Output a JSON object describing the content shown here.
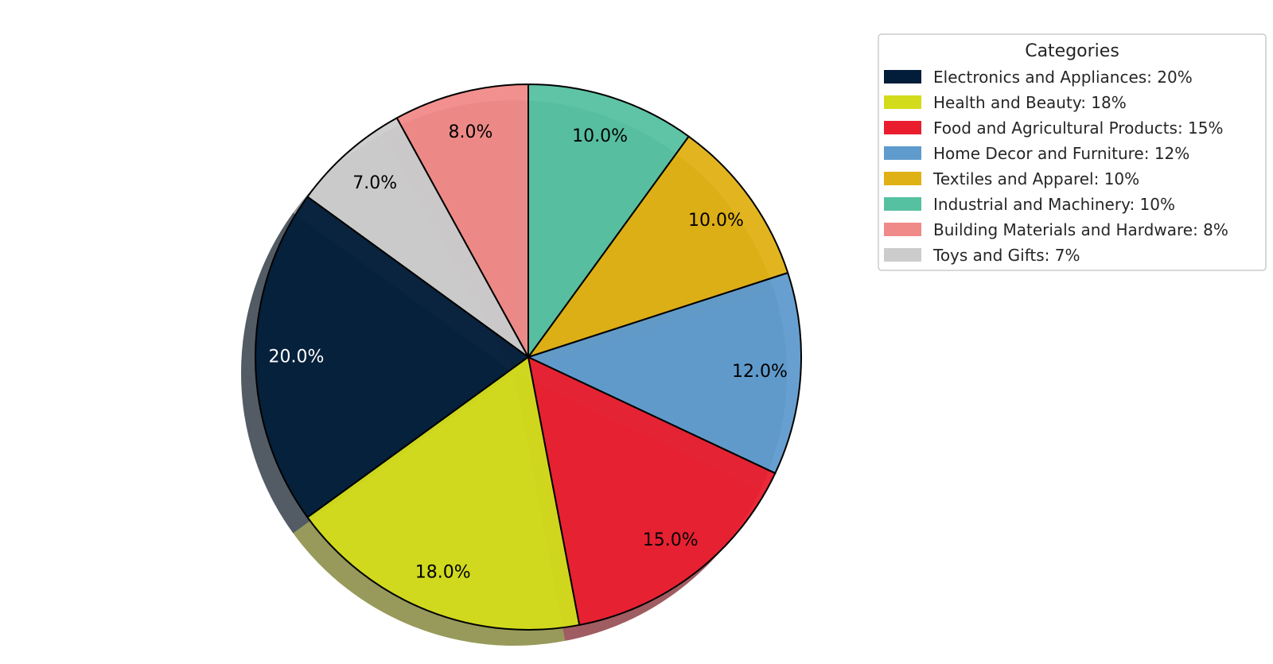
{
  "chart_data": {
    "type": "pie",
    "categories": [
      "Electronics and Appliances",
      "Health and Beauty",
      "Food and Agricultural Products",
      "Home Decor and Furniture",
      "Textiles and Apparel",
      "Industrial and Machinery",
      "Building Materials and Hardware",
      "Toys and Gifts"
    ],
    "values": [
      20,
      18,
      15,
      12,
      10,
      10,
      8,
      7
    ],
    "colors": [
      "#021d3a",
      "#d3dc1a",
      "#ea1d2e",
      "#5f9bcd",
      "#e0b114",
      "#55c1a0",
      "#f08a88",
      "#cccccc"
    ],
    "label_colors": [
      "#ffffff",
      "#000000",
      "#000000",
      "#000000",
      "#000000",
      "#000000",
      "#000000",
      "#000000"
    ],
    "slice_labels": [
      "20.0%",
      "18.0%",
      "15.0%",
      "12.0%",
      "10.0%",
      "10.0%",
      "8.0%",
      "7.0%"
    ],
    "legend": {
      "title": "Categories",
      "entries": [
        "Electronics and Appliances: 20%",
        "Health and Beauty: 18%",
        "Food and Agricultural Products: 15%",
        "Home Decor and Furniture: 12%",
        "Textiles and Apparel: 10%",
        "Industrial and Machinery: 10%",
        "Building Materials and Hardware: 8%",
        "Toys and Gifts: 7%"
      ],
      "placement": "top-right"
    },
    "start_angle_deg": 144,
    "counterclock": true,
    "shadow": true
  }
}
